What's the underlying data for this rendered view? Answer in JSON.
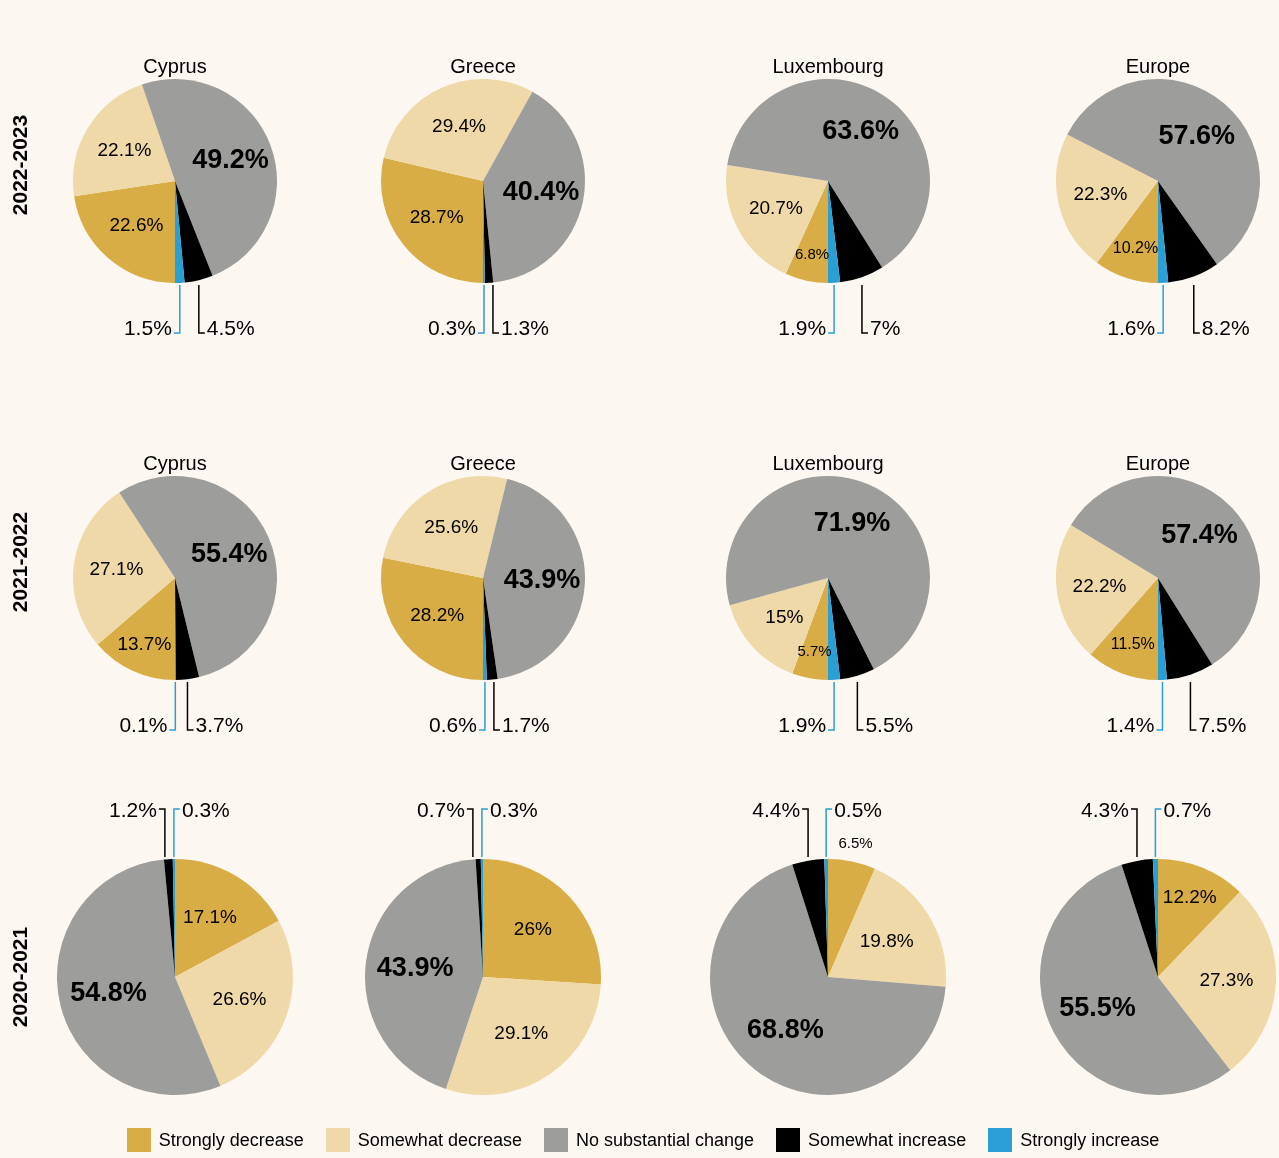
{
  "chart_data": [
    {
      "type": "pie",
      "legend": "bottom",
      "title": "Cyprus",
      "ylabel": "2022-2023",
      "categories": [
        "Strongly decrease",
        "Somewhat decrease",
        "No substantial change",
        "Somewhat increase",
        "Strongly increase"
      ],
      "values": [
        22.6,
        22.1,
        49.2,
        4.5,
        1.5
      ],
      "value_labels": [
        "22.6%",
        "22.1%",
        "49.2%",
        "4.5%",
        "1.5%"
      ],
      "colors": [
        "#d9ad45",
        "#efd9a8",
        "#9d9d9b",
        "#000000",
        "#2a9fd6"
      ]
    },
    {
      "type": "pie",
      "title": "Greece",
      "categories": [
        null,
        null,
        null,
        null,
        null
      ],
      "values": [
        28.7,
        29.4,
        40.4,
        1.3,
        0.3
      ],
      "value_labels": [
        "28.7%",
        "29.4%",
        "40.4%",
        "1.3%",
        "0.3%"
      ],
      "colors": [
        "#d9ad45",
        "#efd9a8",
        "#9d9d9b",
        "#000000",
        "#2a9fd6"
      ]
    },
    {
      "type": "pie",
      "title": "Luxembourg",
      "categories": [
        null,
        null,
        null,
        null,
        null
      ],
      "values": [
        6.8,
        20.7,
        63.6,
        7,
        1.9
      ],
      "value_labels": [
        "6.8%",
        "20.7%",
        "63.6%",
        "7%",
        "1.9%"
      ],
      "colors": [
        "#d9ad45",
        "#efd9a8",
        "#9d9d9b",
        "#000000",
        "#2a9fd6"
      ]
    },
    {
      "type": "pie",
      "title": "Europe",
      "categories": [
        null,
        null,
        null,
        null,
        null
      ],
      "values": [
        10.2,
        22.3,
        57.6,
        8.2,
        1.6
      ],
      "value_labels": [
        "10.2%",
        "22.3%",
        "57.6%",
        "8.2%",
        "1.6%"
      ],
      "colors": [
        "#d9ad45",
        "#efd9a8",
        "#9d9d9b",
        "#000000",
        "#2a9fd6"
      ]
    },
    {
      "type": "pie",
      "title": "Cyprus",
      "ylabel": "2021-2022",
      "categories": [
        null,
        null,
        null,
        null,
        null
      ],
      "values": [
        13.7,
        27.1,
        55.4,
        3.7,
        0.1
      ],
      "value_labels": [
        "13.7%",
        "27.1%",
        "55.4%",
        "3.7%",
        "0.1%"
      ],
      "colors": [
        "#d9ad45",
        "#efd9a8",
        "#9d9d9b",
        "#000000",
        "#2a9fd6"
      ]
    },
    {
      "type": "pie",
      "title": "Greece",
      "categories": [
        null,
        null,
        null,
        null,
        null
      ],
      "values": [
        28.2,
        25.6,
        43.9,
        1.7,
        0.6
      ],
      "value_labels": [
        "28.2%",
        "25.6%",
        "43.9%",
        "1.7%",
        "0.6%"
      ],
      "colors": [
        "#d9ad45",
        "#efd9a8",
        "#9d9d9b",
        "#000000",
        "#2a9fd6"
      ]
    },
    {
      "type": "pie",
      "title": "Luxembourg",
      "categories": [
        null,
        null,
        null,
        null,
        null
      ],
      "values": [
        5.7,
        15,
        71.9,
        5.5,
        1.9
      ],
      "value_labels": [
        "5.7%",
        "15%",
        "71.9%",
        "5.5%",
        "1.9%"
      ],
      "colors": [
        "#d9ad45",
        "#efd9a8",
        "#9d9d9b",
        "#000000",
        "#2a9fd6"
      ]
    },
    {
      "type": "pie",
      "title": "Europe",
      "categories": [
        null,
        null,
        null,
        null,
        null
      ],
      "values": [
        11.5,
        22.2,
        57.4,
        7.5,
        1.4
      ],
      "value_labels": [
        "11.5%",
        "22.2%",
        "57.4%",
        "7.5%",
        "1.4%"
      ],
      "colors": [
        "#d9ad45",
        "#efd9a8",
        "#9d9d9b",
        "#000000",
        "#2a9fd6"
      ]
    },
    {
      "type": "pie",
      "ylabel": "2020-2021",
      "categories": [
        null,
        null,
        null,
        null,
        null
      ],
      "values": [
        17.1,
        26.6,
        54.8,
        1.2,
        0.3
      ],
      "value_labels": [
        "17.1%",
        "26.6%",
        "54.8%",
        "1.2%",
        "0.3%"
      ],
      "colors": [
        "#d9ad45",
        "#efd9a8",
        "#9d9d9b",
        "#000000",
        "#2a9fd6"
      ]
    },
    {
      "type": "pie",
      "categories": [
        null,
        null,
        null,
        null,
        null
      ],
      "values": [
        26,
        29.1,
        43.9,
        0.7,
        0.3
      ],
      "value_labels": [
        "26%",
        "29.1%",
        "43.9%",
        "0.7%",
        "0.3%"
      ],
      "colors": [
        "#d9ad45",
        "#efd9a8",
        "#9d9d9b",
        "#000000",
        "#2a9fd6"
      ]
    },
    {
      "type": "pie",
      "categories": [
        null,
        null,
        null,
        null,
        null
      ],
      "values": [
        6.5,
        19.8,
        68.8,
        4.4,
        0.5
      ],
      "value_labels": [
        "6.5%",
        "19.8%",
        "68.8%",
        "4.4%",
        "0.5%"
      ],
      "colors": [
        "#d9ad45",
        "#efd9a8",
        "#9d9d9b",
        "#000000",
        "#2a9fd6"
      ]
    },
    {
      "type": "pie",
      "categories": [
        null,
        null,
        null,
        null,
        null
      ],
      "values": [
        12.2,
        27.3,
        55.5,
        4.3,
        0.7
      ],
      "value_labels": [
        "12.2%",
        "27.3%",
        "55.5%",
        "4.3%",
        "0.7%"
      ],
      "colors": [
        "#d9ad45",
        "#efd9a8",
        "#9d9d9b",
        "#000000",
        "#2a9fd6"
      ]
    }
  ]
}
